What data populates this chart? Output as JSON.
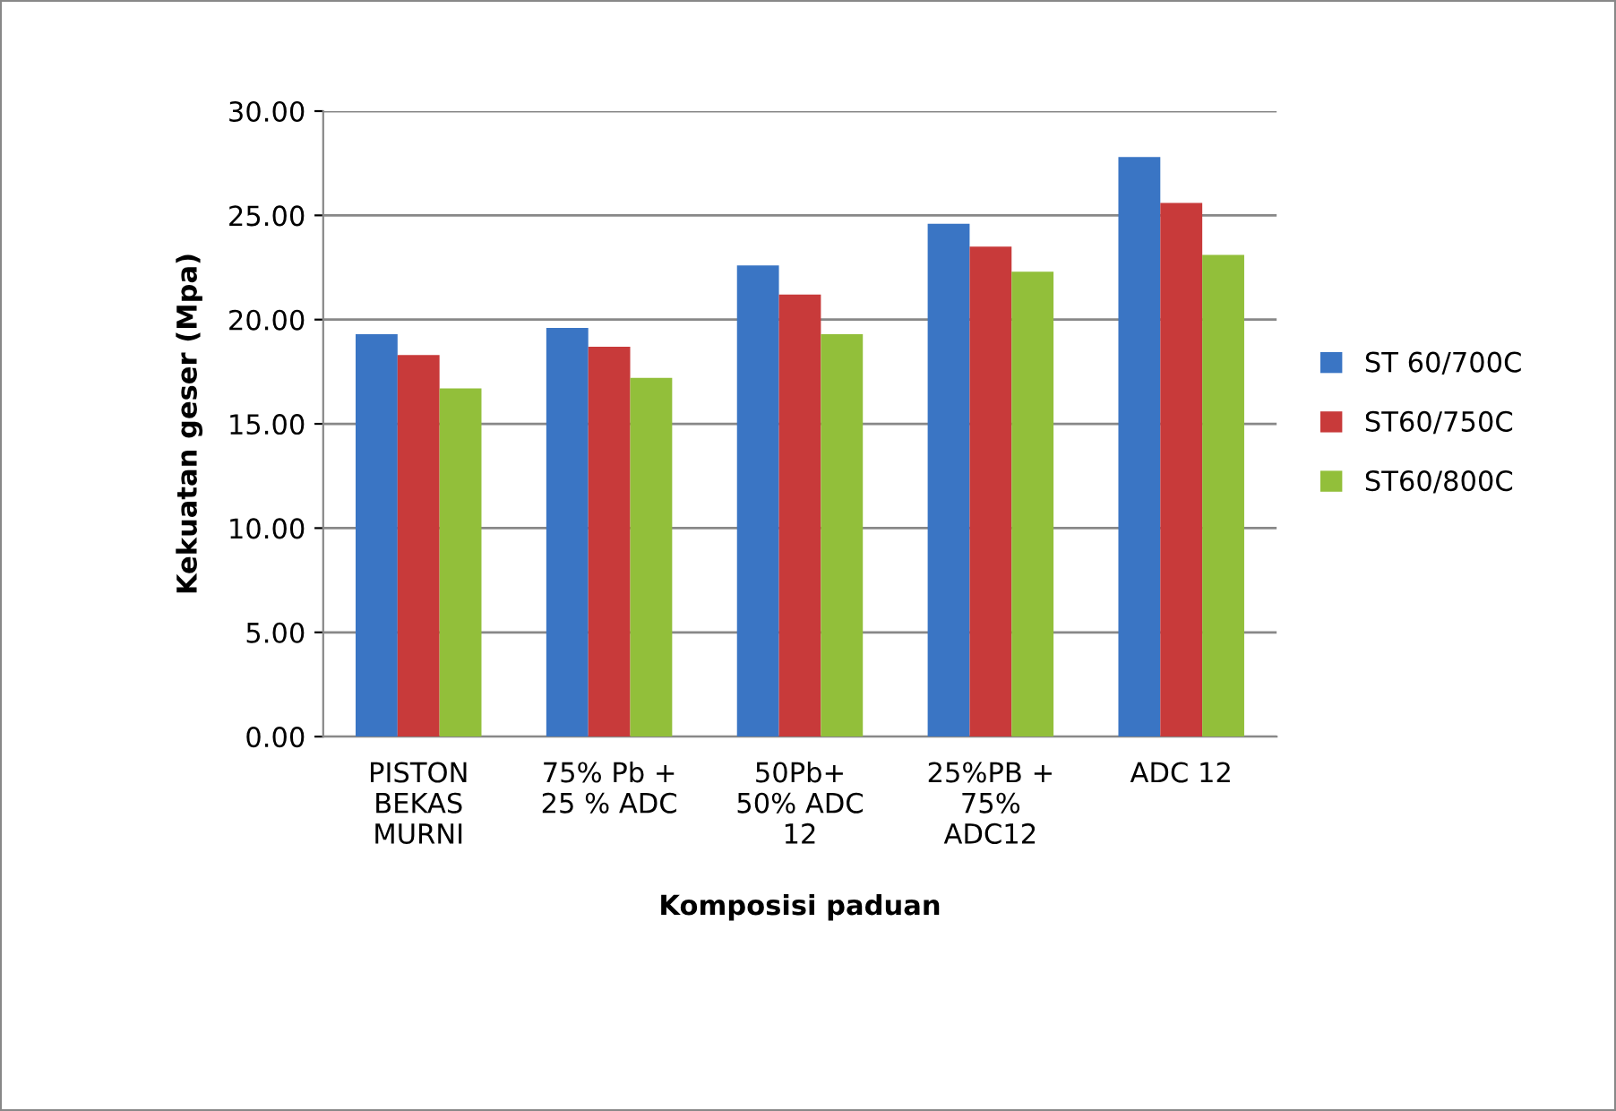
{
  "chart_data": {
    "type": "bar",
    "xlabel": "Komposisi paduan",
    "ylabel": "Kekuatan geser (Mpa)",
    "categories": [
      "PISTON\nBEKAS\nMURNI",
      "75% Pb +\n25 % ADC",
      "50Pb+\n50% ADC\n12",
      "25%PB +\n75%\nADC12",
      "ADC 12"
    ],
    "series": [
      {
        "name": "ST 60/700C",
        "color": "#3a75c4",
        "values": [
          19.3,
          19.6,
          22.6,
          24.6,
          27.8
        ]
      },
      {
        "name": "ST60/750C",
        "color": "#c83a3a",
        "values": [
          18.3,
          18.7,
          21.2,
          23.5,
          25.6
        ]
      },
      {
        "name": "ST60/800C",
        "color": "#92bf3a",
        "values": [
          16.7,
          17.2,
          19.3,
          22.3,
          23.1
        ]
      }
    ],
    "ylim": [
      0,
      30
    ],
    "yticks": [
      {
        "value": 0,
        "label": "0.00"
      },
      {
        "value": 5,
        "label": "5.00"
      },
      {
        "value": 10,
        "label": "10.00"
      },
      {
        "value": 15,
        "label": "15.00"
      },
      {
        "value": 20,
        "label": "20.00"
      },
      {
        "value": 25,
        "label": "25.00"
      },
      {
        "value": 30,
        "label": "30.00"
      }
    ],
    "grid": "y",
    "legend": "right"
  }
}
